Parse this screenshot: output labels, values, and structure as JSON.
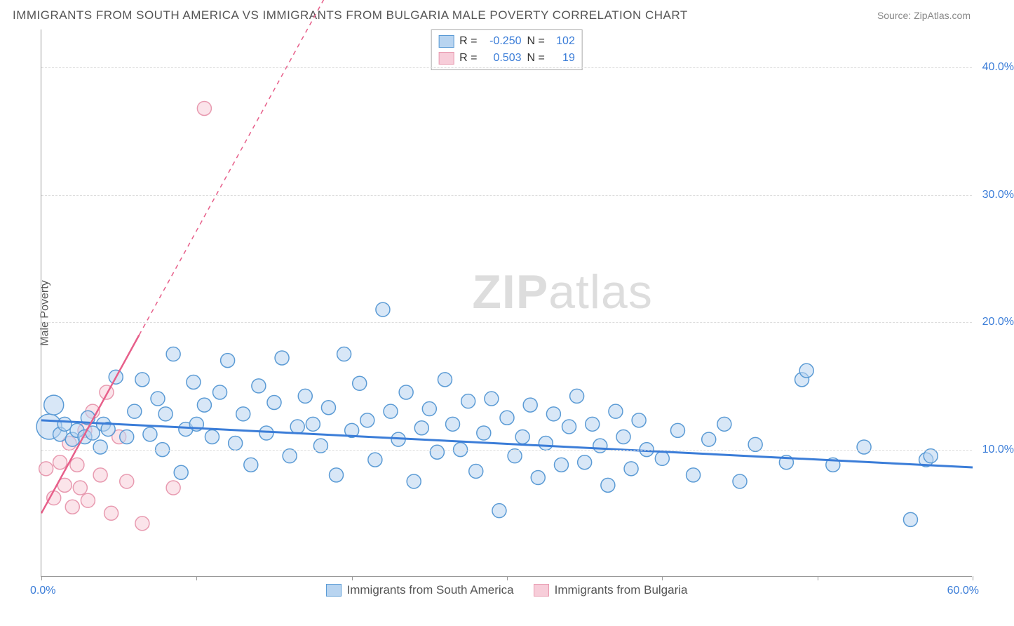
{
  "title": "IMMIGRANTS FROM SOUTH AMERICA VS IMMIGRANTS FROM BULGARIA MALE POVERTY CORRELATION CHART",
  "source": "Source: ZipAtlas.com",
  "ylabel": "Male Poverty",
  "watermark_zip": "ZIP",
  "watermark_atlas": "atlas",
  "chart": {
    "type": "scatter",
    "background_color": "#ffffff",
    "grid_color": "#dddddd",
    "axis_color": "#999999",
    "xlim": [
      0,
      60
    ],
    "ylim": [
      0,
      43
    ],
    "xtick_positions": [
      0,
      10,
      20,
      30,
      40,
      50,
      60
    ],
    "xtick_labels": {
      "left": "0.0%",
      "right": "60.0%"
    },
    "ytick_positions": [
      10,
      20,
      30,
      40
    ],
    "ytick_labels": [
      "10.0%",
      "20.0%",
      "30.0%",
      "40.0%"
    ],
    "ytick_color": "#3b7dd8",
    "series": [
      {
        "name": "Immigrants from South America",
        "fill": "#b8d4f0",
        "stroke": "#5b9bd5",
        "fill_opacity": 0.55,
        "marker_radius": 10,
        "trend": {
          "x1": 0,
          "y1": 12.3,
          "x2": 60,
          "y2": 8.6,
          "stroke": "#3b7dd8",
          "width": 3,
          "dash": "none"
        },
        "R": "-0.250",
        "N": "102",
        "points": [
          [
            0.5,
            11.8,
            18
          ],
          [
            0.8,
            13.5,
            14
          ],
          [
            1.2,
            11.2,
            10
          ],
          [
            1.5,
            12.0,
            10
          ],
          [
            2.0,
            10.8,
            10
          ],
          [
            2.3,
            11.5,
            10
          ],
          [
            2.8,
            11.0,
            10
          ],
          [
            3.0,
            12.5,
            10
          ],
          [
            3.3,
            11.3,
            10
          ],
          [
            3.8,
            10.2,
            10
          ],
          [
            4.0,
            12.0,
            10
          ],
          [
            4.3,
            11.6,
            10
          ],
          [
            4.8,
            15.7,
            10
          ],
          [
            5.5,
            11.0,
            10
          ],
          [
            6.0,
            13.0,
            10
          ],
          [
            6.5,
            15.5,
            10
          ],
          [
            7.0,
            11.2,
            10
          ],
          [
            7.5,
            14.0,
            10
          ],
          [
            7.8,
            10.0,
            10
          ],
          [
            8.0,
            12.8,
            10
          ],
          [
            8.5,
            17.5,
            10
          ],
          [
            9.0,
            8.2,
            10
          ],
          [
            9.3,
            11.6,
            10
          ],
          [
            9.8,
            15.3,
            10
          ],
          [
            10.0,
            12.0,
            10
          ],
          [
            10.5,
            13.5,
            10
          ],
          [
            11.0,
            11.0,
            10
          ],
          [
            11.5,
            14.5,
            10
          ],
          [
            12.0,
            17.0,
            10
          ],
          [
            12.5,
            10.5,
            10
          ],
          [
            13.0,
            12.8,
            10
          ],
          [
            13.5,
            8.8,
            10
          ],
          [
            14.0,
            15.0,
            10
          ],
          [
            14.5,
            11.3,
            10
          ],
          [
            15.0,
            13.7,
            10
          ],
          [
            15.5,
            17.2,
            10
          ],
          [
            16.0,
            9.5,
            10
          ],
          [
            16.5,
            11.8,
            10
          ],
          [
            17.0,
            14.2,
            10
          ],
          [
            17.5,
            12.0,
            10
          ],
          [
            18.0,
            10.3,
            10
          ],
          [
            18.5,
            13.3,
            10
          ],
          [
            19.0,
            8.0,
            10
          ],
          [
            19.5,
            17.5,
            10
          ],
          [
            20.0,
            11.5,
            10
          ],
          [
            20.5,
            15.2,
            10
          ],
          [
            21.0,
            12.3,
            10
          ],
          [
            21.5,
            9.2,
            10
          ],
          [
            22.0,
            21.0,
            10
          ],
          [
            22.5,
            13.0,
            10
          ],
          [
            23.0,
            10.8,
            10
          ],
          [
            23.5,
            14.5,
            10
          ],
          [
            24.0,
            7.5,
            10
          ],
          [
            24.5,
            11.7,
            10
          ],
          [
            25.0,
            13.2,
            10
          ],
          [
            25.5,
            9.8,
            10
          ],
          [
            26.0,
            15.5,
            10
          ],
          [
            26.5,
            12.0,
            10
          ],
          [
            27.0,
            10.0,
            10
          ],
          [
            27.5,
            13.8,
            10
          ],
          [
            28.0,
            8.3,
            10
          ],
          [
            28.5,
            11.3,
            10
          ],
          [
            29.0,
            14.0,
            10
          ],
          [
            29.5,
            5.2,
            10
          ],
          [
            30.0,
            12.5,
            10
          ],
          [
            30.5,
            9.5,
            10
          ],
          [
            31.0,
            11.0,
            10
          ],
          [
            31.5,
            13.5,
            10
          ],
          [
            32.0,
            7.8,
            10
          ],
          [
            32.5,
            10.5,
            10
          ],
          [
            33.0,
            12.8,
            10
          ],
          [
            33.5,
            8.8,
            10
          ],
          [
            34.0,
            11.8,
            10
          ],
          [
            34.5,
            14.2,
            10
          ],
          [
            35.0,
            9.0,
            10
          ],
          [
            35.5,
            12.0,
            10
          ],
          [
            36.0,
            10.3,
            10
          ],
          [
            36.5,
            7.2,
            10
          ],
          [
            37.0,
            13.0,
            10
          ],
          [
            37.5,
            11.0,
            10
          ],
          [
            38.0,
            8.5,
            10
          ],
          [
            38.5,
            12.3,
            10
          ],
          [
            39.0,
            10.0,
            10
          ],
          [
            40.0,
            9.3,
            10
          ],
          [
            41.0,
            11.5,
            10
          ],
          [
            42.0,
            8.0,
            10
          ],
          [
            43.0,
            10.8,
            10
          ],
          [
            44.0,
            12.0,
            10
          ],
          [
            45.0,
            7.5,
            10
          ],
          [
            46.0,
            10.4,
            10
          ],
          [
            48.0,
            9.0,
            10
          ],
          [
            49.0,
            15.5,
            10
          ],
          [
            49.3,
            16.2,
            10
          ],
          [
            51.0,
            8.8,
            10
          ],
          [
            53.0,
            10.2,
            10
          ],
          [
            56.0,
            4.5,
            10
          ],
          [
            57.0,
            9.2,
            10
          ],
          [
            57.3,
            9.5,
            10
          ]
        ]
      },
      {
        "name": "Immigrants from Bulgaria",
        "fill": "#f7cdd9",
        "stroke": "#e89ab0",
        "fill_opacity": 0.55,
        "marker_radius": 10,
        "trend": {
          "x1": 0,
          "y1": 5.0,
          "x2": 6.3,
          "y2": 19.0,
          "stroke": "#e75f8a",
          "width": 2.5,
          "dash": "none",
          "ext_x2": 23,
          "ext_y2": 56,
          "ext_dash": "6,6",
          "ext_width": 1.5
        },
        "R": "0.503",
        "N": "19",
        "points": [
          [
            0.3,
            8.5,
            10
          ],
          [
            0.8,
            6.2,
            10
          ],
          [
            1.2,
            9.0,
            10
          ],
          [
            1.5,
            7.2,
            10
          ],
          [
            1.8,
            10.5,
            10
          ],
          [
            2.0,
            5.5,
            10
          ],
          [
            2.3,
            8.8,
            10
          ],
          [
            2.5,
            7.0,
            10
          ],
          [
            2.8,
            11.5,
            10
          ],
          [
            3.0,
            6.0,
            10
          ],
          [
            3.3,
            13.0,
            10
          ],
          [
            3.8,
            8.0,
            10
          ],
          [
            4.2,
            14.5,
            10
          ],
          [
            4.5,
            5.0,
            10
          ],
          [
            5.0,
            11.0,
            10
          ],
          [
            5.5,
            7.5,
            10
          ],
          [
            6.5,
            4.2,
            10
          ],
          [
            8.5,
            7.0,
            10
          ],
          [
            10.5,
            36.8,
            10
          ]
        ]
      }
    ],
    "legend_box": {
      "label_R": "R =",
      "label_N": "N ="
    },
    "bottom_legend_labels": [
      "Immigrants from South America",
      "Immigrants from Bulgaria"
    ]
  }
}
